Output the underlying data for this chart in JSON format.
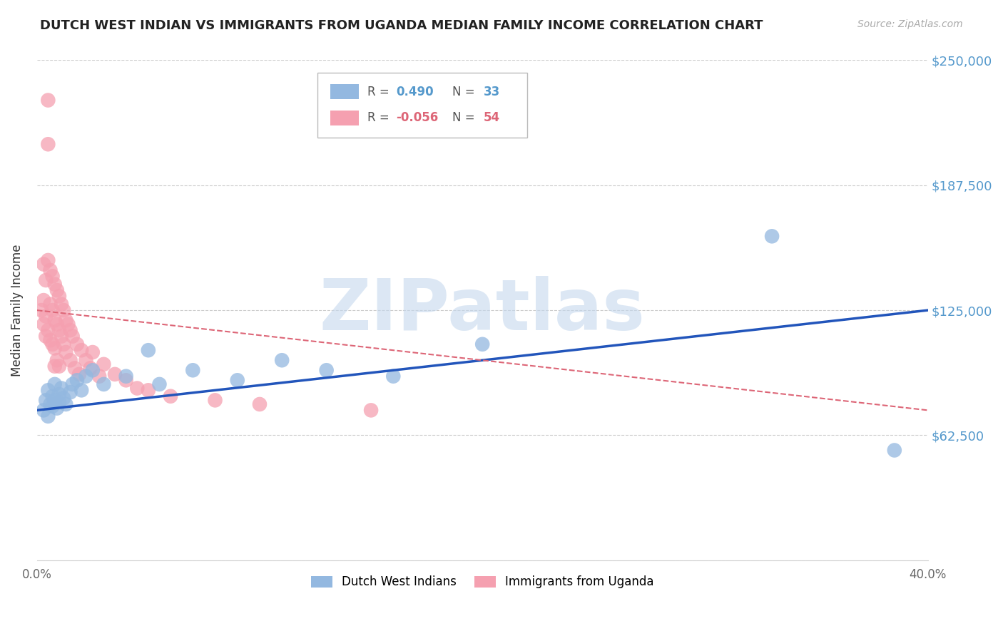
{
  "title": "DUTCH WEST INDIAN VS IMMIGRANTS FROM UGANDA MEDIAN FAMILY INCOME CORRELATION CHART",
  "source": "Source: ZipAtlas.com",
  "ylabel": "Median Family Income",
  "xlim": [
    0.0,
    0.4
  ],
  "ylim": [
    0,
    250000
  ],
  "yticks": [
    0,
    62500,
    125000,
    187500,
    250000
  ],
  "ytick_labels": [
    "",
    "$62,500",
    "$125,000",
    "$187,500",
    "$250,000"
  ],
  "xticks": [
    0.0,
    0.05,
    0.1,
    0.15,
    0.2,
    0.25,
    0.3,
    0.35,
    0.4
  ],
  "xtick_labels": [
    "0.0%",
    "",
    "",
    "",
    "",
    "",
    "",
    "",
    "40.0%"
  ],
  "blue_color": "#93b8e0",
  "pink_color": "#f5a0b0",
  "trend_blue": "#2255bb",
  "trend_pink": "#dd6677",
  "watermark": "ZIPatlas",
  "watermark_color": "#c5d8ee",
  "background": "#ffffff",
  "grid_color": "#cccccc",
  "label_color": "#5599cc",
  "blue_R": "0.490",
  "blue_N": "33",
  "pink_R": "-0.056",
  "pink_N": "54",
  "blue_x": [
    0.003,
    0.004,
    0.005,
    0.005,
    0.006,
    0.007,
    0.007,
    0.008,
    0.008,
    0.009,
    0.01,
    0.01,
    0.011,
    0.012,
    0.013,
    0.015,
    0.016,
    0.018,
    0.02,
    0.022,
    0.025,
    0.03,
    0.04,
    0.05,
    0.055,
    0.07,
    0.09,
    0.11,
    0.13,
    0.16,
    0.2,
    0.33,
    0.385
  ],
  "blue_y": [
    75000,
    80000,
    72000,
    85000,
    78000,
    82000,
    77000,
    88000,
    80000,
    76000,
    83000,
    79000,
    86000,
    81000,
    78000,
    84000,
    88000,
    90000,
    85000,
    92000,
    95000,
    88000,
    92000,
    105000,
    88000,
    95000,
    90000,
    100000,
    95000,
    92000,
    108000,
    162000,
    55000
  ],
  "pink_x": [
    0.002,
    0.003,
    0.003,
    0.003,
    0.004,
    0.004,
    0.004,
    0.005,
    0.005,
    0.005,
    0.005,
    0.006,
    0.006,
    0.006,
    0.007,
    0.007,
    0.007,
    0.008,
    0.008,
    0.008,
    0.008,
    0.009,
    0.009,
    0.009,
    0.01,
    0.01,
    0.01,
    0.011,
    0.011,
    0.012,
    0.012,
    0.013,
    0.013,
    0.014,
    0.015,
    0.015,
    0.016,
    0.017,
    0.018,
    0.019,
    0.02,
    0.022,
    0.024,
    0.025,
    0.028,
    0.03,
    0.035,
    0.04,
    0.045,
    0.05,
    0.06,
    0.08,
    0.1,
    0.15
  ],
  "pink_y": [
    125000,
    148000,
    130000,
    118000,
    140000,
    122000,
    112000,
    230000,
    208000,
    150000,
    115000,
    145000,
    128000,
    110000,
    142000,
    125000,
    108000,
    138000,
    120000,
    106000,
    97000,
    135000,
    118000,
    100000,
    132000,
    115000,
    97000,
    128000,
    112000,
    125000,
    108000,
    120000,
    104000,
    118000,
    115000,
    100000,
    112000,
    96000,
    108000,
    93000,
    105000,
    100000,
    96000,
    104000,
    92000,
    98000,
    93000,
    90000,
    86000,
    85000,
    82000,
    80000,
    78000,
    75000
  ]
}
